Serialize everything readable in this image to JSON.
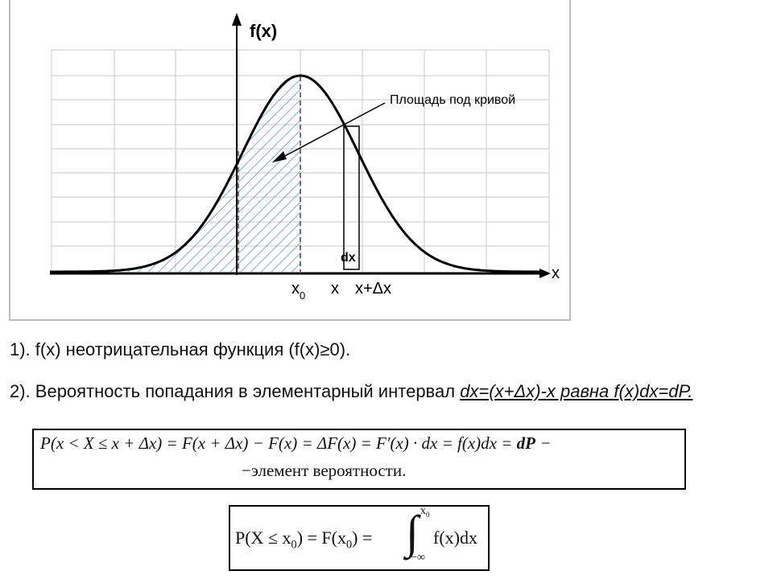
{
  "diagram": {
    "y_axis_label": "f(x)",
    "x_axis_label": "x",
    "annotation": "Площадь под кривой",
    "strip_label": "dx",
    "tick_x0": "x",
    "tick_x0_sub": "0",
    "tick_x": "x",
    "tick_x_dx": "x+Δx"
  },
  "text": {
    "line1": "1). f(x) неотрицательная функция (f(x)≥0).",
    "line2_prefix": "2). Вероятность попадания в элементарный интервал ",
    "line2_highlight": "dx=(x+Δx)-x  равна  f(x)dx=dP."
  },
  "formula1": {
    "row1_a": "P(x < X ≤ x + Δx) = F(x + Δx) − F(x) = ΔF(x) = F′(x) · dx = f(x)dx = ",
    "row1_b": "dP",
    "row1_c": " −",
    "row2": "−элемент вероятности."
  },
  "formula2": {
    "main_a": "P(X ≤ x",
    "sub": "0",
    "main_b": ") = F(x",
    "main_c": ") =",
    "integral": "∫",
    "upper": "x",
    "upper_sub": "0",
    "lower": "−∞",
    "integrand": "f(x)dx"
  }
}
